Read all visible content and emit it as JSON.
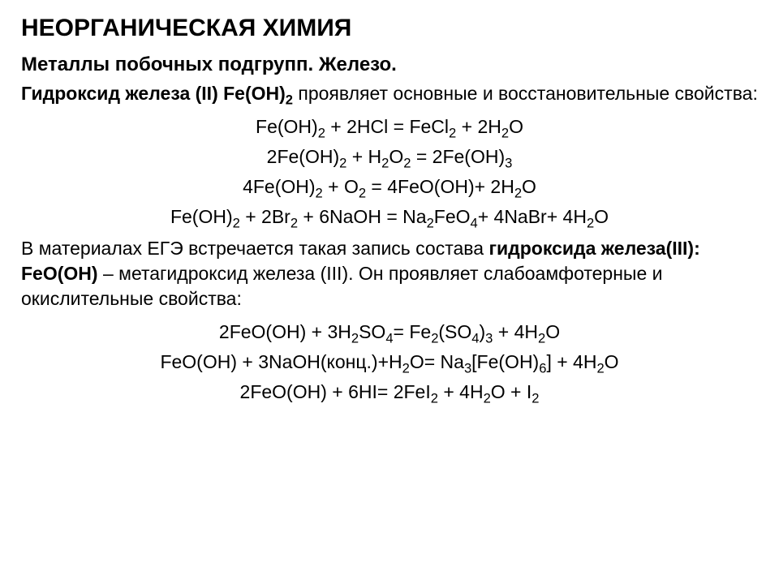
{
  "title": "НЕОРГАНИЧЕСКАЯ ХИМИЯ",
  "subtitle": "Металлы побочных подгрупп. Железо.",
  "intro": {
    "bold_lead": "Гидроксид железа (II) Fe(OH)",
    "sub1": "2",
    "tail": " проявляет основные и восстановительные свойства:"
  },
  "eq1": {
    "p": "Fe(OH)",
    "s1": "2",
    "p2": " + 2HCl = FeCl",
    "s2": "2",
    "p3": " + 2H",
    "s3": "2",
    "p4": "O"
  },
  "eq2": {
    "p": "2Fe(OH)",
    "s1": "2",
    "p2": " + H",
    "s2": "2",
    "p3": "O",
    "s3": "2",
    "p4": " = 2Fe(OH)",
    "s4": "3"
  },
  "eq3": {
    "p": "4Fe(OH)",
    "s1": "2",
    "p2": " + O",
    "s2": "2",
    "p3": " = 4FeO(OH)+ 2H",
    "s3": "2",
    "p4": "O"
  },
  "eq4": {
    "p": "Fe(OH)",
    "s1": "2",
    "p2": " + 2Br",
    "s2": "2",
    "p3": " + 6NaOH = Na",
    "s3": "2",
    "p4": "FeO",
    "s4": "4",
    "p5": "+ 4NaBr+ 4H",
    "s5": "2",
    "p6": "O"
  },
  "mid": {
    "lead": "В материалах ЕГЭ встречается такая запись состава ",
    "bold": "гидроксида железа(III): FeO(OH)",
    "tail": " – метагидроксид железа (III). Он проявляет слабоамфотерные и окислительные свойства:"
  },
  "eq5": {
    "p": "2FeO(OH) + 3H",
    "s1": "2",
    "p2": "SO",
    "s2": "4",
    "p3": "= Fe",
    "s3": "2",
    "p4": "(SO",
    "s4": "4",
    "p5": ")",
    "s5": "3",
    "p6": " + 4H",
    "s6": "2",
    "p7": "O"
  },
  "eq6": {
    "p": "FeO(OH) +  3NaOH(конц.)+H",
    "s1": "2",
    "p2": "O= Na",
    "s2": "3",
    "p3": "[Fe(OH)",
    "s3": "6",
    "p4": "] + 4H",
    "s4": "2",
    "p5": "O"
  },
  "eq7": {
    "p": "2FeO(OH) + 6HI= 2FeI",
    "s1": "2",
    "p2": " + 4H",
    "s2": "2",
    "p3": "O + I",
    "s3": "2"
  }
}
